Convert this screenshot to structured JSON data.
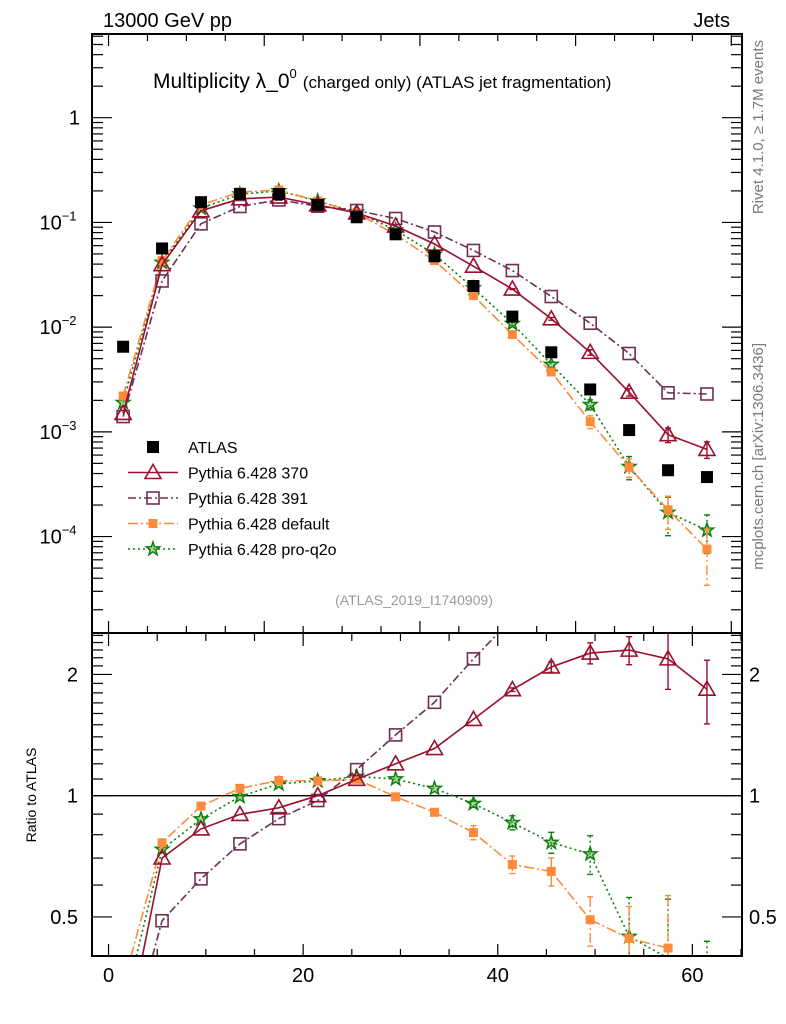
{
  "chart_data": {
    "type": "line",
    "header": {
      "energy": "13000 GeV pp",
      "process": "Jets"
    },
    "title": {
      "main": "Multiplicity λ_0",
      "sup": "0",
      "sub": "(charged only) (ATLAS jet fragmentation)"
    },
    "analysis": "(ATLAS_2019_I1740909)",
    "side_labels": {
      "rivet": "Rivet 4.1.0, ≥ 1.7M events",
      "mcplots": "mcplots.cern.ch [arXiv:1306.3436]"
    },
    "x": [
      1.5,
      5.5,
      9.5,
      13.5,
      17.5,
      21.5,
      25.5,
      29.5,
      33.5,
      37.5,
      41.5,
      45.5,
      49.5,
      53.5,
      57.5,
      61.5
    ],
    "xlim": [
      -1.7,
      65.1
    ],
    "xticks": [
      {
        "value": 0,
        "label": "0"
      },
      {
        "value": 20,
        "label": "20"
      },
      {
        "value": 40,
        "label": "40"
      },
      {
        "value": 60,
        "label": "60"
      }
    ],
    "main": {
      "yscale": "log",
      "ylim": [
        1.2e-05,
        6.3
      ],
      "yticks": [
        {
          "value": 1,
          "base": "1",
          "exp": ""
        },
        {
          "value": 0.1,
          "base": "10",
          "exp": "−1"
        },
        {
          "value": 0.01,
          "base": "10",
          "exp": "−2"
        },
        {
          "value": 0.001,
          "base": "10",
          "exp": "−3"
        },
        {
          "value": 0.0001,
          "base": "10",
          "exp": "−4"
        }
      ]
    },
    "ratio": {
      "ylabel": "Ratio to ATLAS",
      "yscale": "log",
      "ylim": [
        0.4,
        2.52
      ],
      "reference": 1,
      "yticks": [
        {
          "value": 0.5,
          "label": "0.5"
        },
        {
          "value": 1,
          "label": "1"
        },
        {
          "value": 2,
          "label": "2"
        }
      ]
    },
    "legend_position": "lower-left",
    "series": [
      {
        "name": "ATLAS",
        "color": "#000000",
        "marker": "filled-square",
        "line": "none",
        "values": [
          0.0065,
          0.0564,
          0.156,
          0.187,
          0.187,
          0.147,
          0.112,
          0.077,
          0.0475,
          0.0247,
          0.0126,
          0.00575,
          0.00254,
          0.00104,
          0.00043,
          0.00037
        ],
        "rel_err": [
          0,
          0,
          0,
          0,
          0,
          0,
          0,
          0,
          0,
          0,
          0,
          0,
          0,
          0,
          0,
          0
        ]
      },
      {
        "name": "Pythia 6.428 370",
        "color": "#9b0e2d",
        "marker": "open-triangle",
        "line": "solid",
        "values": [
          0.0015,
          0.0395,
          0.129,
          0.168,
          0.1745,
          0.147,
          0.123,
          0.0924,
          0.0622,
          0.0382,
          0.0231,
          0.012,
          0.00574,
          0.00239,
          0.00094,
          0.00068
        ],
        "rel_err": [
          0,
          0,
          0,
          0,
          0,
          0,
          0,
          0,
          0,
          0,
          0.01,
          0.03,
          0.06,
          0.08,
          0.16,
          0.18
        ]
      },
      {
        "name": "Pythia 6.428 391",
        "color": "#6e3052",
        "marker": "open-square",
        "line": "dashdot",
        "values": [
          0.0014,
          0.0276,
          0.097,
          0.142,
          0.164,
          0.143,
          0.13,
          0.109,
          0.081,
          0.054,
          0.0347,
          0.0196,
          0.0109,
          0.0056,
          0.00236,
          0.0023
        ],
        "rel_err": [
          0,
          0,
          0,
          0,
          0,
          0,
          0,
          0,
          0,
          0,
          0,
          0,
          0,
          0,
          0,
          0
        ]
      },
      {
        "name": "Pythia 6.428 default",
        "color": "#ff8a3a",
        "marker": "filled-square-small",
        "line": "longdashdot",
        "values": [
          0.0022,
          0.0431,
          0.147,
          0.195,
          0.204,
          0.16,
          0.123,
          0.0765,
          0.0432,
          0.02,
          0.0085,
          0.00373,
          0.00125,
          0.00046,
          0.00018,
          7.6e-05
        ],
        "rel_err": [
          0,
          0,
          0,
          0,
          0,
          0,
          0,
          0,
          0.02,
          0.04,
          0.05,
          0.08,
          0.14,
          0.2,
          0.35,
          0.55
        ]
      },
      {
        "name": "Pythia 6.428 pro-q2o",
        "color": "#0a7f0a",
        "marker": "open-star",
        "line": "dotted",
        "values": [
          0.0019,
          0.0415,
          0.1365,
          0.186,
          0.2,
          0.16,
          0.125,
          0.0847,
          0.0495,
          0.0236,
          0.0108,
          0.0044,
          0.00182,
          0.000465,
          0.00017,
          0.000115
        ],
        "rel_err": [
          0,
          0,
          0,
          0,
          0,
          0,
          0,
          0,
          0,
          0.02,
          0.04,
          0.06,
          0.11,
          0.25,
          0.4,
          0.4
        ]
      }
    ]
  }
}
